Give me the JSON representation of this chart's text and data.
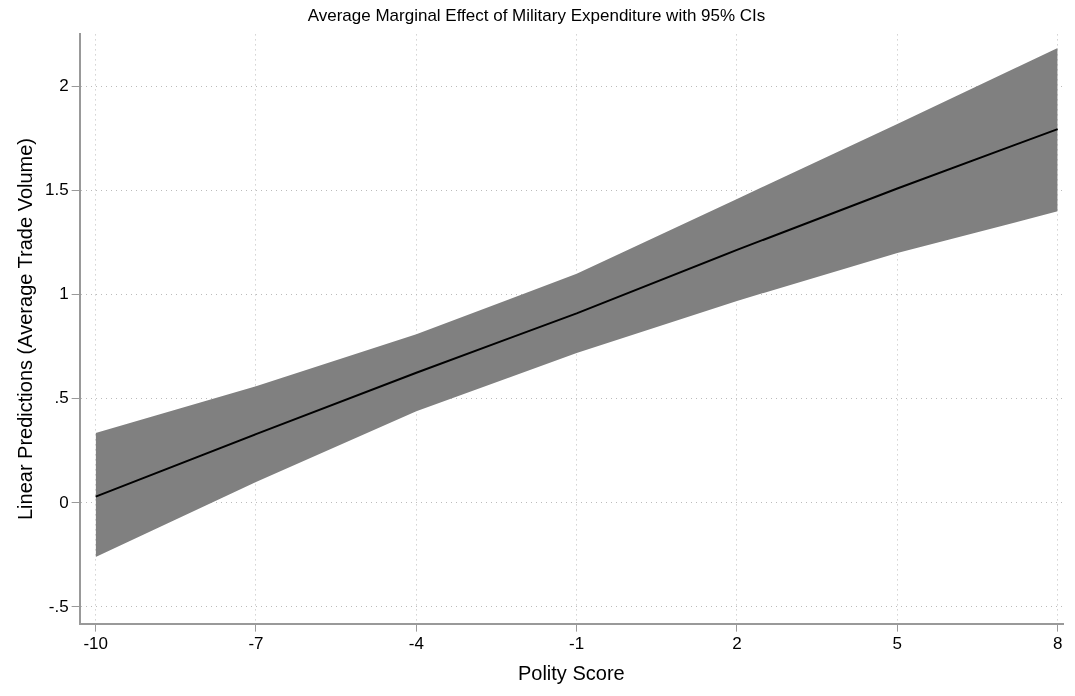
{
  "chart_data": {
    "type": "line",
    "title": "Average Marginal Effect of Military Expenditure with 95% CIs",
    "xlabel": "Polity Score",
    "ylabel": "Linear Predictions (Average Trade Volume)",
    "x": [
      -10,
      -7,
      -4,
      -1,
      2,
      5,
      8
    ],
    "series": [
      {
        "color": "#000000",
        "values": [
          0.03,
          0.33,
          0.625,
          0.91,
          1.215,
          1.51,
          1.795
        ],
        "lower": [
          -0.26,
          0.1,
          0.44,
          0.72,
          0.97,
          1.2,
          1.4
        ],
        "upper": [
          0.335,
          0.56,
          0.81,
          1.1,
          1.46,
          1.82,
          2.185
        ]
      }
    ],
    "xlim": [
      -10.3,
      8.1
    ],
    "xticks": [
      -10,
      -7,
      -4,
      -1,
      2,
      5,
      8
    ],
    "ylim": [
      -0.58,
      2.25
    ],
    "yticks": [
      {
        "value": -0.5,
        "label": "-.5"
      },
      0,
      {
        "value": 0.5,
        "label": ".5"
      },
      1,
      1.5,
      2
    ],
    "grid": true,
    "legend": false,
    "marker": "none",
    "line_style": "solid"
  }
}
